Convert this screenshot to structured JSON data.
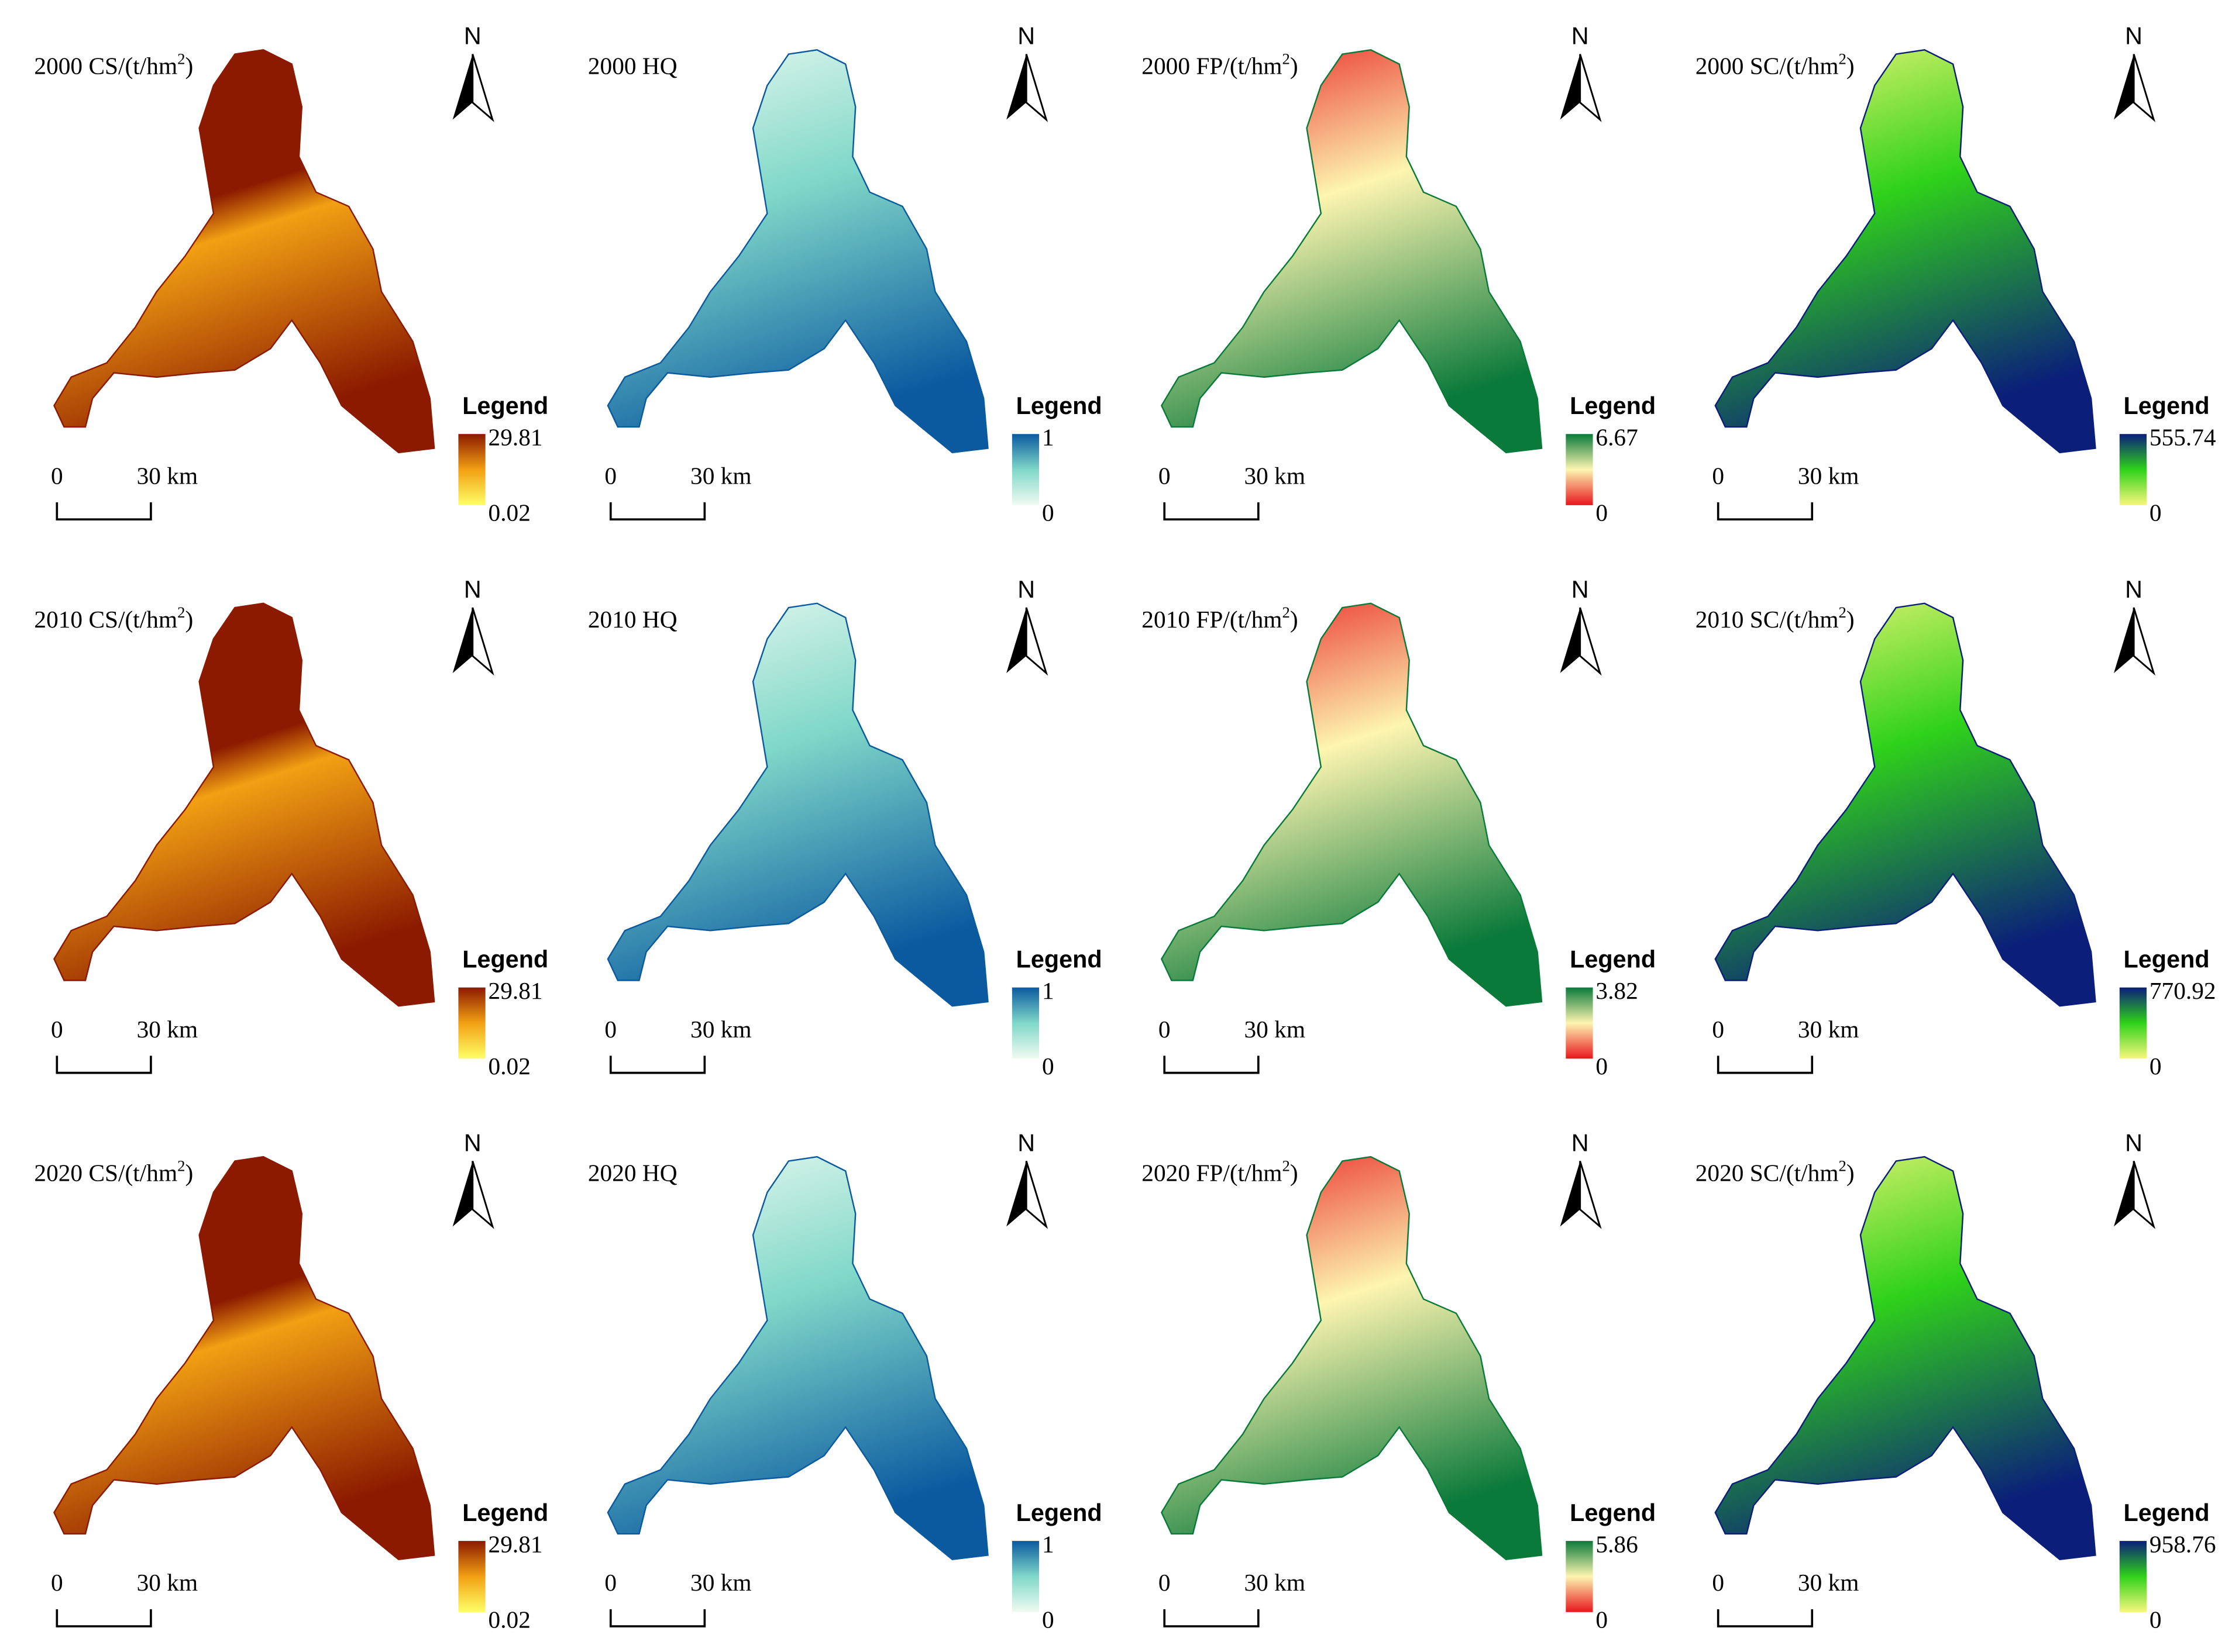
{
  "panels": [
    {
      "title": [
        {
          "text": "2000 CS/(t/hm"
        },
        {
          "text": "2",
          "sup": true
        },
        {
          "text": ")"
        }
      ],
      "north": "N",
      "legend": {
        "title": "Legend",
        "max": 29.81,
        "min": 0.02,
        "ramp": [
          "#ffff66",
          "#f2a013",
          "#8b1a00"
        ]
      },
      "scale": {
        "start": "0",
        "end": "30 km"
      }
    },
    {
      "title": [
        {
          "text": "2000 HQ"
        }
      ],
      "north": "N",
      "legend": {
        "title": "Legend",
        "max": 1,
        "min": 0,
        "ramp": [
          "#f0fbf2",
          "#7fd8c8",
          "#0b5aa0"
        ]
      },
      "scale": {
        "start": "0",
        "end": "30 km"
      }
    },
    {
      "title": [
        {
          "text": "2000 FP/(t/hm"
        },
        {
          "text": "2",
          "sup": true
        },
        {
          "text": ")"
        }
      ],
      "north": "N",
      "legend": {
        "title": "Legend",
        "max": 6.67,
        "min": 0,
        "ramp": [
          "#e8161c",
          "#fdf5b0",
          "#0a7a3a"
        ]
      },
      "scale": {
        "start": "0",
        "end": "30 km"
      }
    },
    {
      "title": [
        {
          "text": "2000 SC/(t/hm"
        },
        {
          "text": "2",
          "sup": true
        },
        {
          "text": ")"
        }
      ],
      "north": "N",
      "legend": {
        "title": "Legend",
        "max": 555.74,
        "min": 0,
        "ramp": [
          "#f7f77a",
          "#2fd21a",
          "#0a1e7a"
        ]
      },
      "scale": {
        "start": "0",
        "end": "30 km"
      }
    },
    {
      "title": [
        {
          "text": "2010 CS/(t/hm"
        },
        {
          "text": "2",
          "sup": true
        },
        {
          "text": ")"
        }
      ],
      "north": "N",
      "legend": {
        "title": "Legend",
        "max": 29.81,
        "min": 0.02,
        "ramp": [
          "#ffff66",
          "#f2a013",
          "#8b1a00"
        ]
      },
      "scale": {
        "start": "0",
        "end": "30 km"
      }
    },
    {
      "title": [
        {
          "text": "2010 HQ"
        }
      ],
      "north": "N",
      "legend": {
        "title": "Legend",
        "max": 1,
        "min": 0,
        "ramp": [
          "#f0fbf2",
          "#7fd8c8",
          "#0b5aa0"
        ]
      },
      "scale": {
        "start": "0",
        "end": "30 km"
      }
    },
    {
      "title": [
        {
          "text": "2010 FP/(t/hm"
        },
        {
          "text": "2",
          "sup": true
        },
        {
          "text": ")"
        }
      ],
      "north": "N",
      "legend": {
        "title": "Legend",
        "max": 3.82,
        "min": 0,
        "ramp": [
          "#e8161c",
          "#fdf5b0",
          "#0a7a3a"
        ]
      },
      "scale": {
        "start": "0",
        "end": "30 km"
      }
    },
    {
      "title": [
        {
          "text": "2010 SC/(t/hm"
        },
        {
          "text": "2",
          "sup": true
        },
        {
          "text": ")"
        }
      ],
      "north": "N",
      "legend": {
        "title": "Legend",
        "max": 770.92,
        "min": 0,
        "ramp": [
          "#f7f77a",
          "#2fd21a",
          "#0a1e7a"
        ]
      },
      "scale": {
        "start": "0",
        "end": "30 km"
      }
    },
    {
      "title": [
        {
          "text": "2020 CS/(t/hm"
        },
        {
          "text": "2",
          "sup": true
        },
        {
          "text": ")"
        }
      ],
      "north": "N",
      "legend": {
        "title": "Legend",
        "max": 29.81,
        "min": 0.02,
        "ramp": [
          "#ffff66",
          "#f2a013",
          "#8b1a00"
        ]
      },
      "scale": {
        "start": "0",
        "end": "30 km"
      }
    },
    {
      "title": [
        {
          "text": "2020 HQ"
        }
      ],
      "north": "N",
      "legend": {
        "title": "Legend",
        "max": 1,
        "min": 0,
        "ramp": [
          "#f0fbf2",
          "#7fd8c8",
          "#0b5aa0"
        ]
      },
      "scale": {
        "start": "0",
        "end": "30 km"
      }
    },
    {
      "title": [
        {
          "text": "2020 FP/(t/hm"
        },
        {
          "text": "2",
          "sup": true
        },
        {
          "text": ")"
        }
      ],
      "north": "N",
      "legend": {
        "title": "Legend",
        "max": 5.86,
        "min": 0,
        "ramp": [
          "#e8161c",
          "#fdf5b0",
          "#0a7a3a"
        ]
      },
      "scale": {
        "start": "0",
        "end": "30 km"
      }
    },
    {
      "title": [
        {
          "text": "2020 SC/(t/hm"
        },
        {
          "text": "2",
          "sup": true
        },
        {
          "text": ")"
        }
      ],
      "north": "N",
      "legend": {
        "title": "Legend",
        "max": 958.76,
        "min": 0,
        "ramp": [
          "#f7f77a",
          "#2fd21a",
          "#0a1e7a"
        ]
      },
      "scale": {
        "start": "0",
        "end": "30 km"
      }
    }
  ]
}
